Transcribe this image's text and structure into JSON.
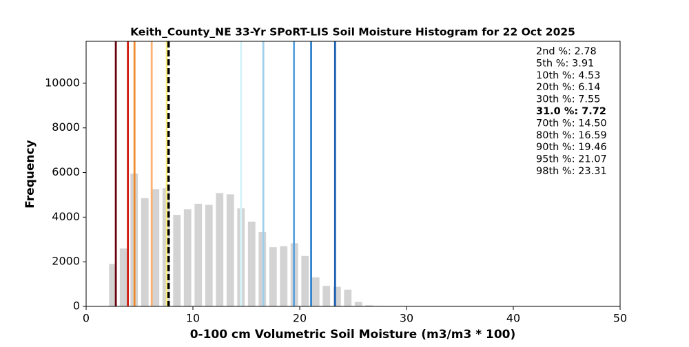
{
  "chart_data": {
    "type": "histogram",
    "title": "Keith_County_NE 33-Yr SPoRT-LIS Soil Moisture Histogram for 22 Oct 2025",
    "x_label": "0-100 cm Volumetric Soil Moisture (m3/m3 * 100)",
    "y_label": "Frequency",
    "bins": [
      2,
      3,
      4,
      5,
      6,
      7,
      8,
      9,
      10,
      11,
      12,
      13,
      14,
      15,
      16,
      17,
      18,
      19,
      20,
      21,
      22,
      23,
      24,
      25,
      26,
      27,
      28
    ],
    "values": [
      1900,
      2600,
      5950,
      4850,
      5250,
      5300,
      4100,
      4350,
      4600,
      4550,
      5080,
      5020,
      4400,
      3800,
      3330,
      2650,
      2700,
      2830,
      2260,
      1300,
      920,
      880,
      750,
      200,
      50,
      20
    ],
    "color": "#d3d3d3",
    "xlim": [
      0,
      50
    ],
    "xticks": [
      0,
      10,
      20,
      30,
      40,
      50
    ],
    "ylim": [
      0,
      11880
    ],
    "yticks": [
      0,
      2000,
      4000,
      6000,
      8000,
      10000
    ],
    "percentiles": [
      {
        "label": "2nd %: 2.78",
        "value": 2.78,
        "color": "#67000d"
      },
      {
        "label": "5th %: 3.91",
        "value": 3.91,
        "color": "#d01c10"
      },
      {
        "label": "10th %: 4.53",
        "value": 4.53,
        "color": "#f08a30"
      },
      {
        "label": "20th %: 6.14",
        "value": 6.14,
        "color": "#f9b070"
      },
      {
        "label": "30th %: 7.55",
        "value": 7.55,
        "color": "#fff080"
      },
      {
        "label": "31.0 %: 7.72",
        "value": 7.72,
        "color": "#000000",
        "style": "dashed"
      },
      {
        "label": "70th %: 14.50",
        "value": 14.5,
        "color": "#d4f4fa"
      },
      {
        "label": "80th %: 16.59",
        "value": 16.59,
        "color": "#9ecfec"
      },
      {
        "label": "90th %: 19.46",
        "value": 19.46,
        "color": "#5ba3e0"
      },
      {
        "label": "95th %: 21.07",
        "value": 21.07,
        "color": "#3182cc"
      },
      {
        "label": "98th %: 23.31",
        "value": 23.31,
        "color": "#1d5fb0"
      }
    ]
  }
}
